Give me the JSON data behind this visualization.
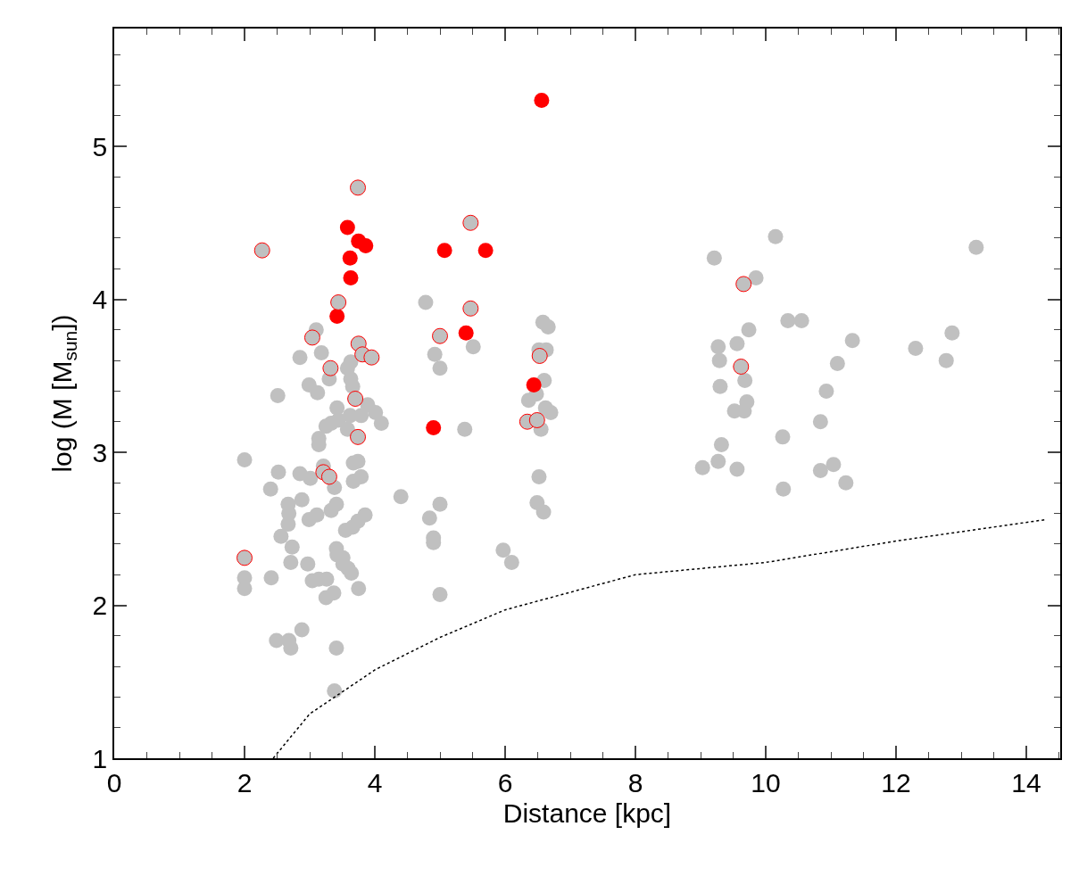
{
  "chart_data": {
    "type": "scatter",
    "xlabel": "Distance [kpc]",
    "ylabel": "log (M [M$_{sun}$])",
    "xlim": [
      0,
      14.52
    ],
    "ylim": [
      1,
      5.77
    ],
    "xticks": [
      0,
      2,
      4,
      6,
      8,
      10,
      12,
      14
    ],
    "yticks": [
      1,
      2,
      3,
      4,
      5
    ],
    "grid": false,
    "marker": "circle",
    "series": [
      {
        "color": "#c0c0c0",
        "x": [
          2.0,
          2.0,
          2.0,
          2.51,
          2.52,
          2.4,
          2.41,
          2.49,
          2.68,
          2.71,
          2.88,
          2.56,
          2.67,
          2.68,
          2.67,
          2.73,
          2.71,
          2.85,
          2.85,
          2.88,
          2.99,
          3.01,
          2.99,
          2.97,
          3.04,
          3.1,
          3.12,
          3.14,
          3.14,
          3.11,
          3.14,
          3.18,
          3.25,
          3.26,
          3.25,
          3.21,
          3.3,
          3.33,
          3.33,
          3.38,
          3.42,
          3.44,
          3.41,
          3.41,
          3.42,
          3.37,
          3.41,
          3.38,
          3.51,
          3.55,
          3.51,
          3.59,
          3.64,
          3.58,
          3.63,
          3.66,
          3.62,
          3.58,
          3.67,
          3.74,
          3.67,
          3.79,
          3.66,
          3.74,
          3.85,
          3.75,
          3.63,
          3.89,
          4.01,
          4.1,
          3.79,
          4.4,
          4.78,
          4.92,
          5.0,
          4.84,
          4.9,
          4.9,
          5.0,
          5.0,
          5.38,
          5.51,
          5.97,
          6.1,
          6.58,
          6.66,
          6.52,
          6.63,
          6.6,
          6.36,
          6.48,
          6.62,
          6.7,
          6.55,
          6.52,
          6.49,
          6.59,
          9.21,
          9.27,
          9.29,
          9.3,
          9.32,
          9.27,
          9.03,
          9.56,
          9.52,
          9.56,
          9.67,
          9.71,
          9.68,
          9.74,
          9.85,
          10.15,
          10.34,
          10.55,
          10.26,
          10.27,
          10.93,
          10.84,
          10.84,
          11.04,
          11.1,
          11.23,
          11.33,
          12.3,
          12.77,
          12.86,
          13.23
        ],
        "values": [
          2.95,
          2.18,
          2.11,
          3.37,
          2.87,
          2.76,
          2.18,
          1.77,
          1.77,
          1.72,
          1.84,
          2.45,
          2.53,
          2.6,
          2.66,
          2.38,
          2.28,
          3.62,
          2.86,
          2.69,
          3.44,
          2.83,
          2.56,
          2.27,
          2.16,
          3.8,
          3.39,
          3.09,
          3.05,
          2.59,
          2.17,
          3.65,
          3.17,
          2.17,
          2.05,
          2.91,
          3.48,
          3.19,
          2.62,
          2.77,
          3.29,
          3.21,
          2.66,
          2.37,
          2.33,
          2.08,
          1.72,
          1.44,
          2.27,
          2.49,
          2.31,
          2.24,
          2.21,
          3.55,
          3.48,
          3.43,
          3.24,
          3.15,
          2.93,
          2.94,
          2.81,
          2.84,
          2.51,
          2.55,
          2.59,
          2.11,
          3.59,
          3.31,
          3.26,
          3.19,
          3.24,
          2.71,
          3.98,
          3.64,
          3.55,
          2.57,
          2.44,
          2.41,
          2.66,
          2.07,
          3.15,
          3.69,
          2.36,
          2.28,
          3.85,
          3.82,
          3.67,
          3.67,
          3.47,
          3.34,
          3.38,
          3.29,
          3.26,
          3.15,
          2.84,
          2.67,
          2.61,
          4.27,
          3.69,
          3.6,
          3.43,
          3.05,
          2.94,
          2.9,
          3.71,
          3.27,
          2.89,
          3.27,
          3.33,
          3.47,
          3.8,
          4.14,
          4.41,
          3.86,
          3.86,
          3.1,
          2.76,
          3.4,
          3.2,
          2.88,
          2.92,
          3.58,
          2.8,
          3.73,
          3.68,
          3.6,
          3.78,
          4.34
        ]
      },
      {
        "color": "#ff0000",
        "x": [
          6.56,
          3.58,
          3.75,
          3.86,
          3.62,
          3.63,
          5.07,
          5.7,
          3.42,
          5.4,
          6.44,
          4.9
        ],
        "values": [
          5.3,
          4.47,
          4.38,
          4.35,
          4.27,
          4.14,
          4.32,
          4.32,
          3.89,
          3.78,
          3.44,
          3.16
        ]
      },
      {
        "color": "#ff0000",
        "x": [
          2.27,
          3.74,
          5.47,
          3.44,
          5.47,
          9.66,
          3.04,
          5.0,
          3.75,
          3.81,
          3.95,
          3.32,
          6.53,
          9.62,
          3.7,
          6.34,
          6.49,
          3.74,
          3.21,
          3.3,
          2.0
        ],
        "values": [
          4.32,
          4.73,
          4.5,
          3.98,
          3.94,
          4.1,
          3.75,
          3.76,
          3.71,
          3.64,
          3.62,
          3.55,
          3.63,
          3.56,
          3.35,
          3.2,
          3.21,
          3.1,
          2.87,
          2.84,
          2.31
        ]
      },
      {
        "type": "line",
        "color": "#000000",
        "marker": "none",
        "line_style": "dotted",
        "x": [
          2.44,
          3,
          4.01,
          5,
          6,
          8,
          10,
          12,
          14.3
        ],
        "values": [
          1.0,
          1.29,
          1.58,
          1.79,
          1.97,
          2.2,
          2.28,
          2.42,
          2.56
        ]
      }
    ]
  }
}
